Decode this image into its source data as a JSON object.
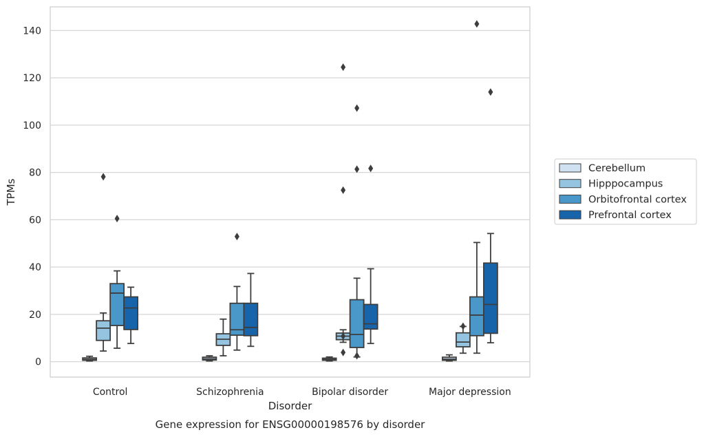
{
  "chart_data": {
    "type": "box",
    "title": "Gene expression for ENSG00000198576 by disorder",
    "xlabel": "Disorder",
    "ylabel": "TPMs",
    "ylim": [
      -6.5,
      150
    ],
    "yticks": [
      0,
      20,
      40,
      60,
      80,
      100,
      120,
      140
    ],
    "grid": "horizontal",
    "legend_position": "right",
    "categories": [
      "Control",
      "Schizophrenia",
      "Bipolar disorder",
      "Major depression"
    ],
    "series": [
      {
        "name": "Cerebellum",
        "color": "#d0e1f2",
        "boxes": [
          {
            "whislo": 0.3,
            "q1": 0.6,
            "med": 1.0,
            "q3": 1.6,
            "whishi": 2.3,
            "fliers": []
          },
          {
            "whislo": 0.3,
            "q1": 0.7,
            "med": 1.2,
            "q3": 1.9,
            "whishi": 2.5,
            "fliers": []
          },
          {
            "whislo": 0.3,
            "q1": 0.6,
            "med": 1.0,
            "q3": 1.5,
            "whishi": 2.0,
            "fliers": []
          },
          {
            "whislo": 0.3,
            "q1": 0.6,
            "med": 1.1,
            "q3": 1.9,
            "whishi": 2.9,
            "fliers": []
          }
        ]
      },
      {
        "name": "Hipppocampus",
        "color": "#94c4df",
        "boxes": [
          {
            "whislo": 4.5,
            "q1": 9.0,
            "med": 14.2,
            "q3": 17.3,
            "whishi": 20.6,
            "fliers": [
              78.2
            ]
          },
          {
            "whislo": 2.5,
            "q1": 6.9,
            "med": 9.5,
            "q3": 11.8,
            "whishi": 18.0,
            "fliers": []
          },
          {
            "whislo": 8.2,
            "q1": 9.3,
            "med": 10.8,
            "q3": 12.1,
            "whishi": 13.5,
            "fliers": [
              10.8,
              3.9,
              124.5,
              72.5
            ]
          },
          {
            "whislo": 3.6,
            "q1": 6.3,
            "med": 8.3,
            "q3": 12.2,
            "whishi": 14.9,
            "fliers": [
              15.0
            ]
          }
        ]
      },
      {
        "name": "Orbitofrontal cortex",
        "color": "#4a98c9",
        "boxes": [
          {
            "whislo": 5.7,
            "q1": 15.3,
            "med": 29.0,
            "q3": 33.0,
            "whishi": 38.4,
            "fliers": [
              60.5
            ]
          },
          {
            "whislo": 4.9,
            "q1": 11.2,
            "med": 13.5,
            "q3": 24.7,
            "whishi": 31.8,
            "fliers": [
              52.9
            ]
          },
          {
            "whislo": 2.0,
            "q1": 6.0,
            "med": 11.5,
            "q3": 26.2,
            "whishi": 35.3,
            "fliers": [
              2.5,
              107.2,
              81.4
            ]
          },
          {
            "whislo": 3.6,
            "q1": 11.0,
            "med": 19.7,
            "q3": 27.4,
            "whishi": 50.4,
            "fliers": [
              142.8
            ]
          }
        ]
      },
      {
        "name": "Prefrontal cortex",
        "color": "#1764ab",
        "boxes": [
          {
            "whislo": 7.7,
            "q1": 13.6,
            "med": 22.7,
            "q3": 27.4,
            "whishi": 31.5,
            "fliers": []
          },
          {
            "whislo": 6.5,
            "q1": 11.0,
            "med": 14.5,
            "q3": 24.7,
            "whishi": 37.3,
            "fliers": []
          },
          {
            "whislo": 7.7,
            "q1": 13.8,
            "med": 16.0,
            "q3": 24.2,
            "whishi": 39.3,
            "fliers": [
              81.7
            ]
          },
          {
            "whislo": 8.0,
            "q1": 12.0,
            "med": 24.2,
            "q3": 41.7,
            "whishi": 54.2,
            "fliers": [
              114.0
            ]
          }
        ]
      }
    ]
  }
}
